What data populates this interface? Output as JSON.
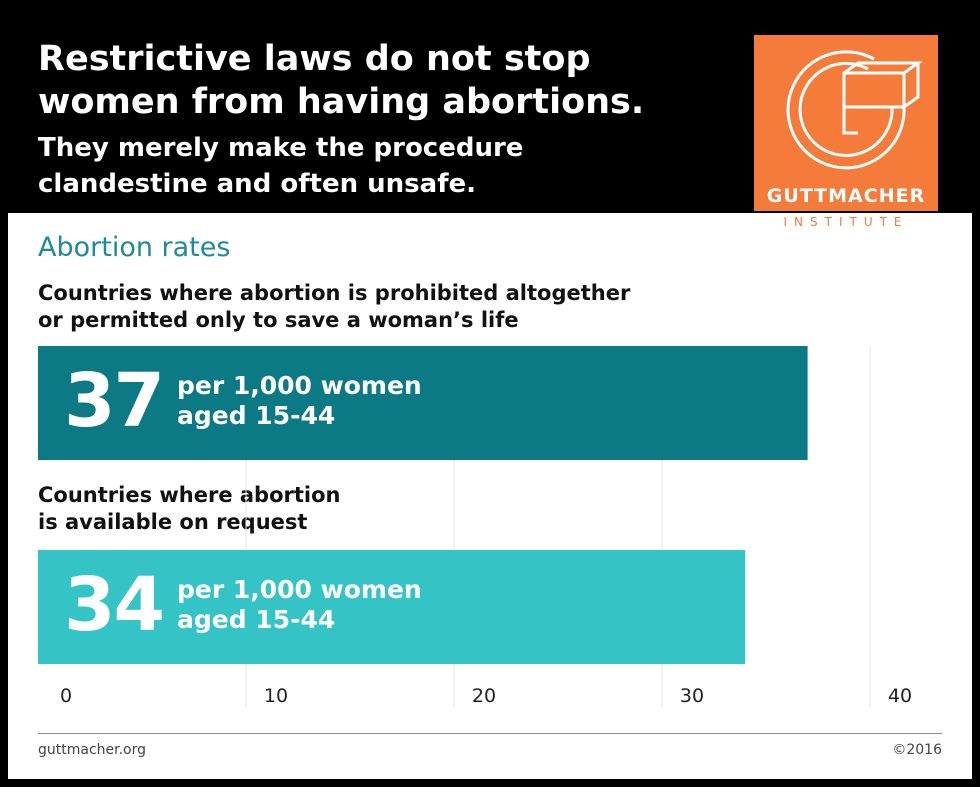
{
  "header": {
    "title_line1": "Restrictive laws do not stop",
    "title_line2": "women from having abortions.",
    "subtitle_line1": "They merely make the procedure",
    "subtitle_line2": "clandestine and often unsafe."
  },
  "logo": {
    "name": "GUTTMACHER",
    "sub": "INSTITUTE",
    "color": "#f47b3a"
  },
  "section_title": "Abortion rates",
  "colors": {
    "dark_teal": "#0c7a85",
    "light_teal": "#34c4c6",
    "title_teal": "#1f8b96"
  },
  "bars": [
    {
      "label_line1": "Countries where abortion is prohibited altogether",
      "label_line2": "or permitted only to save a woman’s life",
      "value_text": "37",
      "unit_line1": "per 1,000 women",
      "unit_line2": "aged 15-44"
    },
    {
      "label_line1": "Countries where abortion",
      "label_line2": "is available on request",
      "value_text": "34",
      "unit_line1": "per 1,000 women",
      "unit_line2": "aged 15-44"
    }
  ],
  "chart_data": {
    "type": "bar",
    "orientation": "horizontal",
    "title": "Abortion rates",
    "categories": [
      "Countries where abortion is prohibited altogether or permitted only to save a woman’s life",
      "Countries where abortion is available on request"
    ],
    "values": [
      37,
      34
    ],
    "unit": "per 1,000 women aged 15-44",
    "xlim": [
      0,
      40
    ],
    "ticks": [
      "0",
      "10",
      "20",
      "30",
      "40"
    ],
    "grid": true
  },
  "footer": {
    "source": "guttmacher.org",
    "copyright": "©2016"
  }
}
